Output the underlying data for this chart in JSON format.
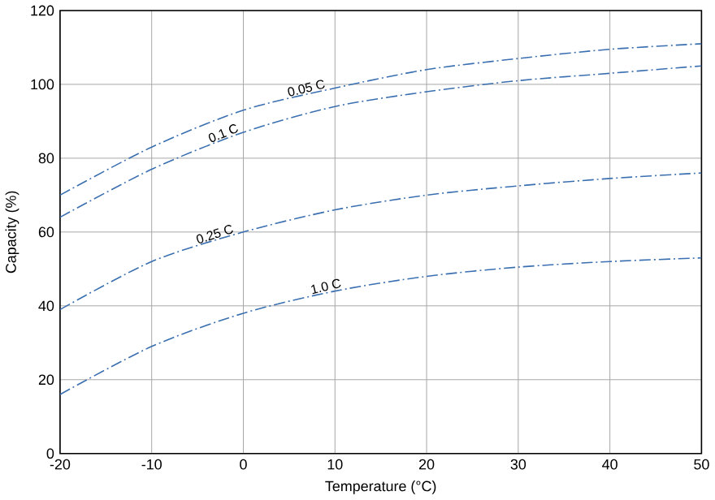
{
  "chart_data": {
    "type": "line",
    "xlabel": "Temperature (°C)",
    "ylabel": "Capacity (%)",
    "x": [
      -20,
      -10,
      0,
      10,
      20,
      30,
      40,
      50
    ],
    "series": [
      {
        "name": "0.05 C",
        "color": "#3a6fb0",
        "values": [
          70,
          83,
          93,
          99,
          104,
          107,
          109.5,
          111
        ]
      },
      {
        "name": "0.1 C",
        "color": "#3a6fb0",
        "values": [
          64,
          77,
          87,
          94,
          98,
          101,
          103,
          105
        ]
      },
      {
        "name": "0.25 C",
        "color": "#3a6fb0",
        "values": [
          39,
          52,
          60,
          66,
          70,
          72.5,
          74.5,
          76
        ]
      },
      {
        "name": "1.0 C",
        "color": "#3a6fb0",
        "values": [
          16,
          29,
          38,
          44,
          48,
          50.5,
          52,
          53
        ]
      }
    ],
    "xlim": [
      -20,
      50
    ],
    "ylim": [
      0,
      120
    ],
    "xticks": [
      -20,
      -10,
      0,
      10,
      20,
      30,
      40,
      50
    ],
    "yticks": [
      0,
      20,
      40,
      60,
      80,
      100,
      120
    ],
    "grid": true,
    "line_style": "dashdot"
  }
}
